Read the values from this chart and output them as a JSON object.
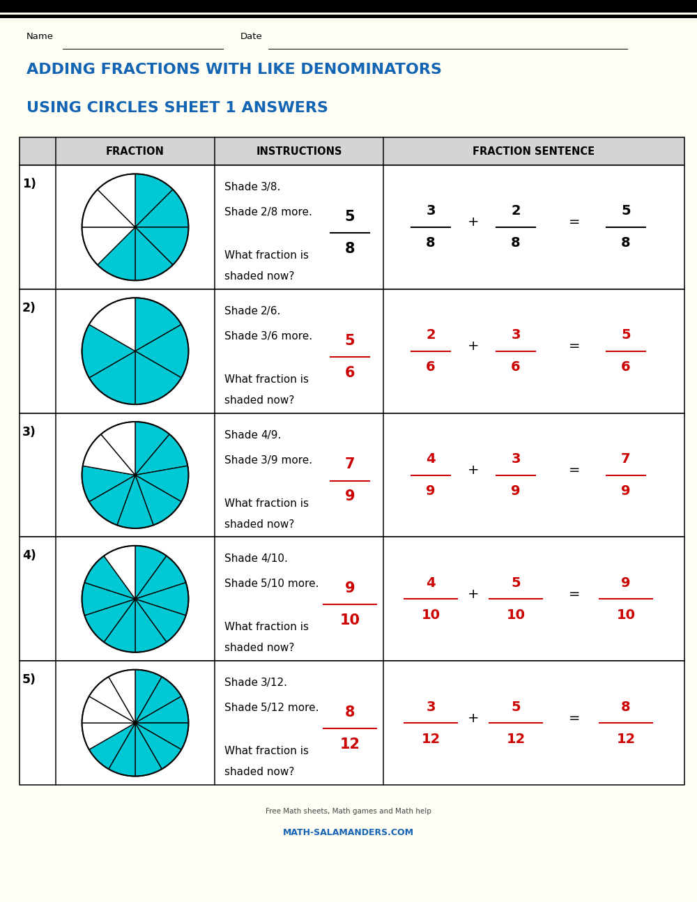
{
  "title_line1": "ADDING FRACTIONS WITH LIKE DENOMINATORS",
  "title_line2": "USING CIRCLES SHEET 1 ANSWERS",
  "title_color": "#1464b4",
  "bg_color": "#fffef5",
  "header_bg": "#d4d4d4",
  "cyan_color": "#00c8d4",
  "black_color": "#000000",
  "red_color": "#cc0000",
  "problems": [
    {
      "num": "1)",
      "denom": 8,
      "total": 5,
      "instr1": "Shade ",
      "sup1": "3",
      "slash1": "/",
      "sub1": "8",
      "dot1": ".",
      "instr2": "Shade ",
      "sup2": "2",
      "slash2": "/",
      "sub2": "8",
      "dot2": " more.",
      "n1": "3",
      "d1": "8",
      "n2": "2",
      "d2": "8",
      "n3": "5",
      "d3": "8",
      "sent_color": "black",
      "ans_color": "black"
    },
    {
      "num": "2)",
      "denom": 6,
      "total": 5,
      "instr1": "Shade ",
      "sup1": "2",
      "slash1": "/",
      "sub1": "6",
      "dot1": ".",
      "instr2": "Shade ",
      "sup2": "3",
      "slash2": "/",
      "sub2": "6",
      "dot2": " more.",
      "n1": "2",
      "d1": "6",
      "n2": "3",
      "d2": "6",
      "n3": "5",
      "d3": "6",
      "sent_color": "red",
      "ans_color": "red"
    },
    {
      "num": "3)",
      "denom": 9,
      "total": 7,
      "instr1": "Shade ",
      "sup1": "4",
      "slash1": "/",
      "sub1": "9",
      "dot1": ".",
      "instr2": "Shade ",
      "sup2": "3",
      "slash2": "/",
      "sub2": "9",
      "dot2": " more.",
      "n1": "4",
      "d1": "9",
      "n2": "3",
      "d2": "9",
      "n3": "7",
      "d3": "9",
      "sent_color": "red",
      "ans_color": "red"
    },
    {
      "num": "4)",
      "denom": 10,
      "total": 9,
      "instr1": "Shade ",
      "sup1": "4",
      "slash1": "/",
      "sub1": "10",
      "dot1": ".",
      "instr2": "Shade ",
      "sup2": "5",
      "slash2": "/",
      "sub2": "10",
      "dot2": " more.",
      "n1": "4",
      "d1": "10",
      "n2": "5",
      "d2": "10",
      "n3": "9",
      "d3": "10",
      "sent_color": "red",
      "ans_color": "red"
    },
    {
      "num": "5)",
      "denom": 12,
      "total": 8,
      "instr1": "Shade ",
      "sup1": "3",
      "slash1": "/",
      "sub1": "12",
      "dot1": ".",
      "instr2": "Shade ",
      "sup2": "5",
      "slash2": "/",
      "sub2": "12",
      "dot2": " more.",
      "n1": "3",
      "d1": "12",
      "n2": "5",
      "d2": "12",
      "n3": "8",
      "d3": "12",
      "sent_color": "red",
      "ans_color": "red"
    }
  ]
}
